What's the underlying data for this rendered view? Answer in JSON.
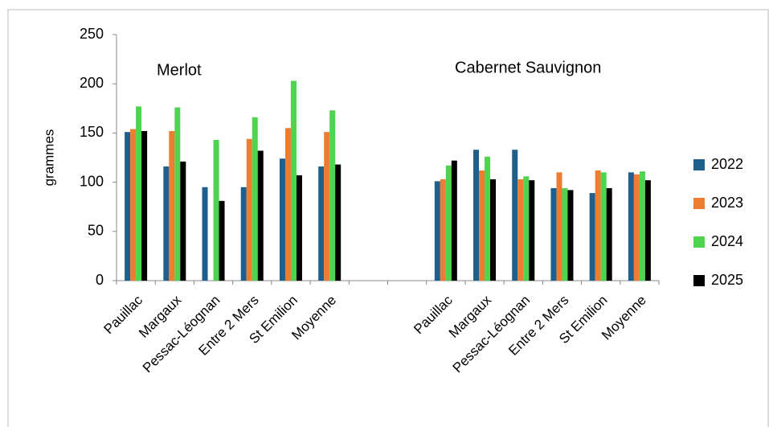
{
  "chart_data": {
    "type": "bar",
    "y_label": "grammes",
    "annotations": [
      "Merlot",
      "Cabernet Sauvignon"
    ],
    "categories": [
      "Pauillac",
      "Margaux",
      "Pessac-Léognan",
      "Entre 2 Mers",
      "St Emilion",
      "Moyenne",
      null,
      null,
      "Pauillac",
      "Margaux",
      "Pessac-Léognan",
      "Entre 2 Mers",
      "St Emilion",
      "Moyenne"
    ],
    "series": [
      {
        "name": "2022",
        "color": "#1f5f8b",
        "values": [
          151,
          116,
          95,
          95,
          124,
          116,
          null,
          null,
          101,
          133,
          133,
          94,
          89,
          110
        ]
      },
      {
        "name": "2023",
        "color": "#ed7d31",
        "values": [
          154,
          152,
          null,
          144,
          155,
          151,
          null,
          null,
          103,
          112,
          103,
          110,
          112,
          108
        ]
      },
      {
        "name": "2024",
        "color": "#4ed44e",
        "values": [
          177,
          176,
          143,
          166,
          203,
          173,
          null,
          null,
          117,
          126,
          106,
          94,
          110,
          111
        ]
      },
      {
        "name": "2025",
        "color": "#000000",
        "values": [
          152,
          121,
          81,
          132,
          107,
          118,
          null,
          null,
          122,
          103,
          102,
          92,
          94,
          102
        ]
      }
    ],
    "ylim": [
      0,
      250
    ],
    "yticks": [
      0,
      50,
      100,
      150,
      200,
      250
    ],
    "legend": "right"
  }
}
